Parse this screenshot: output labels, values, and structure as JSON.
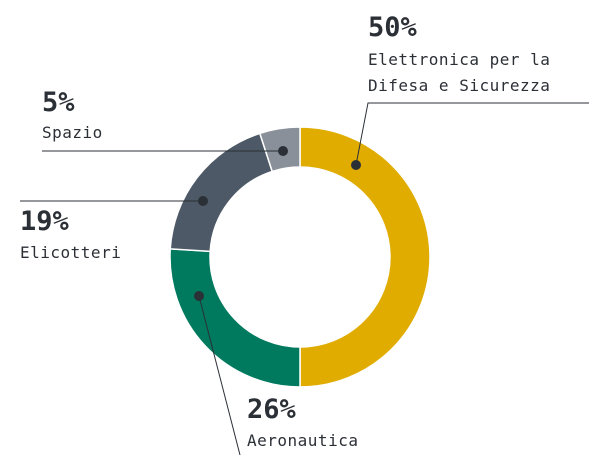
{
  "chart_data": {
    "type": "donut",
    "categories": [
      "Elettronica per la\nDifesa e Sicurezza",
      "Aeronautica",
      "Elicotteri",
      "Spazio"
    ],
    "values": [
      50,
      26,
      19,
      5
    ],
    "value_labels": [
      "50%",
      "26%",
      "19%",
      "5%"
    ],
    "colors": [
      "#e0ac00",
      "#007a5e",
      "#4d5966",
      "#8a9099"
    ]
  }
}
